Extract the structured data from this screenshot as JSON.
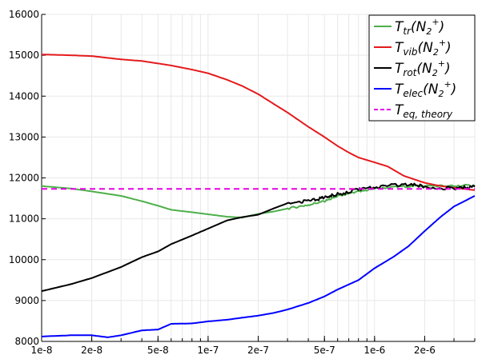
{
  "chart_data": {
    "type": "line",
    "x_scale": "log",
    "xlim": [
      1e-08,
      4e-06
    ],
    "ylim": [
      8000,
      16000
    ],
    "x_ticks": [
      {
        "value": 1e-08,
        "label": "1e-8"
      },
      {
        "value": 2e-08,
        "label": "2e-8"
      },
      {
        "value": 5e-08,
        "label": "5e-8"
      },
      {
        "value": 1e-07,
        "label": "1e-7"
      },
      {
        "value": 2e-07,
        "label": "2e-7"
      },
      {
        "value": 5e-07,
        "label": "5e-7"
      },
      {
        "value": 1e-06,
        "label": "1e-6"
      },
      {
        "value": 2e-06,
        "label": "2e-6"
      }
    ],
    "y_ticks": [
      {
        "value": 8000,
        "label": "8000"
      },
      {
        "value": 9000,
        "label": "9000"
      },
      {
        "value": 10000,
        "label": "10000"
      },
      {
        "value": 11000,
        "label": "11000"
      },
      {
        "value": 12000,
        "label": "12000"
      },
      {
        "value": 13000,
        "label": "13000"
      },
      {
        "value": 14000,
        "label": "14000"
      },
      {
        "value": 15000,
        "label": "15000"
      },
      {
        "value": 16000,
        "label": "16000"
      }
    ],
    "grid": true,
    "legend_position": "top-right",
    "series": [
      {
        "name_base": "T",
        "name_sub": "tr",
        "name_species": "(N",
        "name_species_sub": "2",
        "name_species_sup": "+",
        "name_close": ")",
        "color": "#4daf4a",
        "dash": "solid",
        "width": 2,
        "x": [
          1e-08,
          1.5e-08,
          2e-08,
          3e-08,
          4e-08,
          5e-08,
          6e-08,
          8e-08,
          1e-07,
          1.3e-07,
          1.6e-07,
          2e-07,
          2.5e-07,
          3e-07,
          4e-07,
          5e-07,
          6e-07,
          8e-07,
          1e-06,
          1.5e-06,
          2e-06,
          3e-06,
          4e-06
        ],
        "y": [
          11800,
          11740,
          11670,
          11560,
          11430,
          11320,
          11220,
          11160,
          11110,
          11050,
          11030,
          11120,
          11180,
          11250,
          11340,
          11430,
          11550,
          11660,
          11740,
          11790,
          11810,
          11800,
          11820
        ]
      },
      {
        "name_base": "T",
        "name_sub": "vib",
        "name_species": "(N",
        "name_species_sub": "2",
        "name_species_sup": "+",
        "name_close": ")",
        "color": "#e41a1c",
        "dash": "solid",
        "width": 2,
        "x": [
          1e-08,
          1.5e-08,
          2e-08,
          3e-08,
          4e-08,
          5e-08,
          6e-08,
          8e-08,
          1e-07,
          1.3e-07,
          1.6e-07,
          2e-07,
          2.5e-07,
          3e-07,
          4e-07,
          5e-07,
          6e-07,
          7e-07,
          8e-07,
          1e-06,
          1.2e-06,
          1.5e-06,
          2e-06,
          2.5e-06,
          3e-06,
          4e-06
        ],
        "y": [
          15020,
          15000,
          14980,
          14900,
          14860,
          14800,
          14750,
          14650,
          14560,
          14400,
          14250,
          14050,
          13800,
          13600,
          13250,
          13000,
          12780,
          12620,
          12500,
          12380,
          12280,
          12050,
          11880,
          11800,
          11760,
          11700
        ]
      },
      {
        "name_base": "T",
        "name_sub": "rot",
        "name_species": "(N",
        "name_species_sub": "2",
        "name_species_sup": "+",
        "name_close": ")",
        "color": "#000000",
        "dash": "solid",
        "width": 2,
        "x": [
          1e-08,
          1.5e-08,
          2e-08,
          3e-08,
          4e-08,
          5e-08,
          6e-08,
          8e-08,
          1e-07,
          1.3e-07,
          1.6e-07,
          2e-07,
          2.5e-07,
          3e-07,
          4e-07,
          5e-07,
          6e-07,
          8e-07,
          1e-06,
          1.5e-06,
          2e-06,
          3e-06,
          4e-06
        ],
        "y": [
          9230,
          9400,
          9550,
          9820,
          10060,
          10200,
          10380,
          10590,
          10760,
          10960,
          11040,
          11100,
          11260,
          11380,
          11440,
          11520,
          11600,
          11720,
          11760,
          11850,
          11790,
          11740,
          11780
        ]
      },
      {
        "name_base": "T",
        "name_sub": "elec",
        "name_species": "(N",
        "name_species_sub": "2",
        "name_species_sup": "+",
        "name_close": ")",
        "color": "#0000ff",
        "dash": "solid",
        "width": 2,
        "x": [
          1e-08,
          1.5e-08,
          2e-08,
          2.5e-08,
          3e-08,
          4e-08,
          5e-08,
          6e-08,
          8e-08,
          1e-07,
          1.3e-07,
          1.6e-07,
          2e-07,
          2.5e-07,
          3e-07,
          4e-07,
          5e-07,
          6e-07,
          8e-07,
          1e-06,
          1.3e-06,
          1.6e-06,
          2e-06,
          2.5e-06,
          3e-06,
          4e-06
        ],
        "y": [
          8120,
          8150,
          8150,
          8100,
          8150,
          8270,
          8290,
          8430,
          8440,
          8490,
          8530,
          8580,
          8630,
          8700,
          8780,
          8940,
          9100,
          9270,
          9500,
          9790,
          10070,
          10330,
          10700,
          11050,
          11300,
          11560
        ]
      },
      {
        "name_base": "T",
        "name_sub": "eq, theory",
        "name_species": "",
        "name_species_sub": "",
        "name_species_sup": "",
        "name_close": "",
        "color": "#e600e6",
        "dash": "dashed",
        "width": 2,
        "x": [
          1e-08,
          4e-06
        ],
        "y": [
          11730,
          11730
        ]
      }
    ]
  }
}
